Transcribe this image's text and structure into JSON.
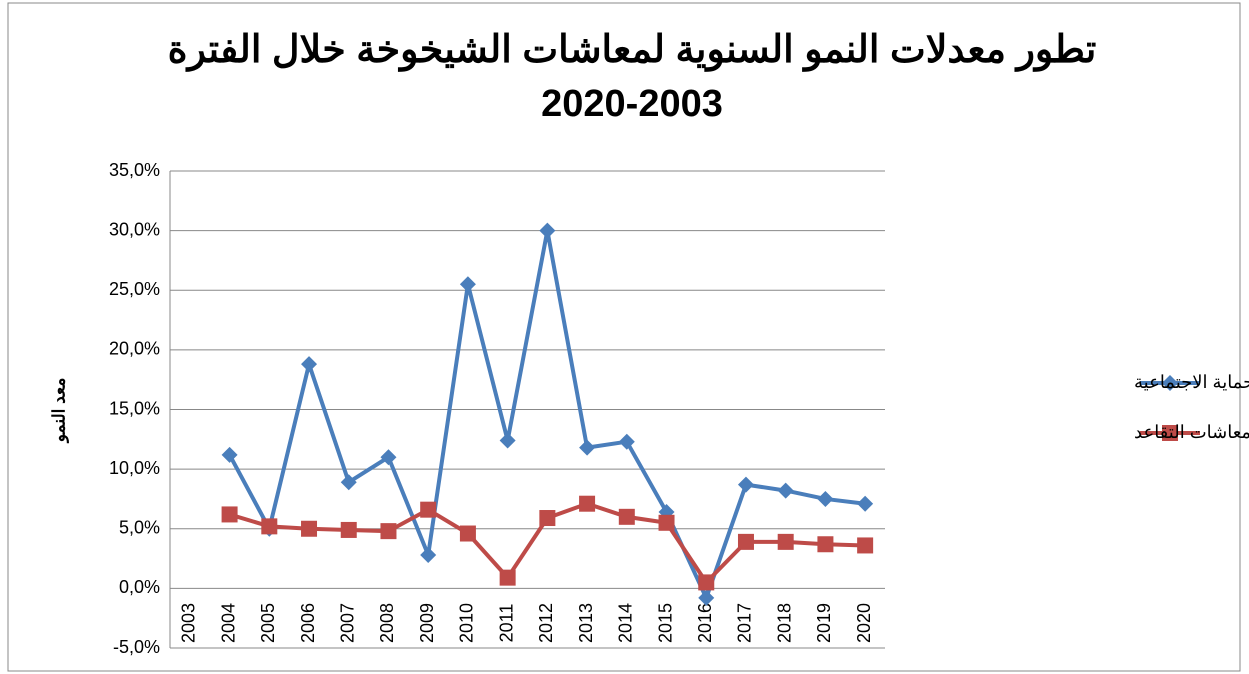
{
  "chart_data": {
    "type": "line",
    "title": [
      "تطور معدلات النمو السنوية لمعاشات الشيخوخة خلال الفترة",
      "2020-2003"
    ],
    "ylabel": "معد النمو",
    "categories": [
      "2003",
      "2004",
      "2005",
      "2006",
      "2007",
      "2008",
      "2009",
      "2010",
      "2011",
      "2012",
      "2013",
      "2014",
      "2015",
      "2016",
      "2017",
      "2018",
      "2019",
      "2020"
    ],
    "series": [
      {
        "name": "معدل نمو الحماية الاجتماعية",
        "color": "#4a7ebb",
        "marker": "diamond",
        "values": [
          null,
          11.2,
          5.0,
          18.8,
          8.9,
          11.0,
          2.8,
          25.5,
          12.4,
          30.0,
          11.8,
          12.3,
          6.4,
          -0.8,
          8.7,
          8.2,
          7.5,
          7.1
        ]
      },
      {
        "name": "معدل نمو معاشات التقاعد",
        "color": "#be4b48",
        "marker": "square",
        "values": [
          null,
          6.2,
          5.2,
          5.0,
          4.9,
          4.8,
          6.6,
          4.6,
          0.9,
          5.9,
          7.1,
          6.0,
          5.5,
          0.5,
          3.9,
          3.9,
          3.7,
          3.6
        ]
      }
    ],
    "ylim": [
      -5,
      35
    ],
    "yticks": [
      {
        "value": -5,
        "label": "-5,0%"
      },
      {
        "value": 0,
        "label": "0,0%"
      },
      {
        "value": 5,
        "label": "5,0%"
      },
      {
        "value": 10,
        "label": "10,0%"
      },
      {
        "value": 15,
        "label": "15,0%"
      },
      {
        "value": 20,
        "label": "20,0%"
      },
      {
        "value": 25,
        "label": "25,0%"
      },
      {
        "value": 30,
        "label": "30,0%"
      },
      {
        "value": 35,
        "label": "35,0%"
      }
    ],
    "grid": true,
    "legend": "right"
  }
}
